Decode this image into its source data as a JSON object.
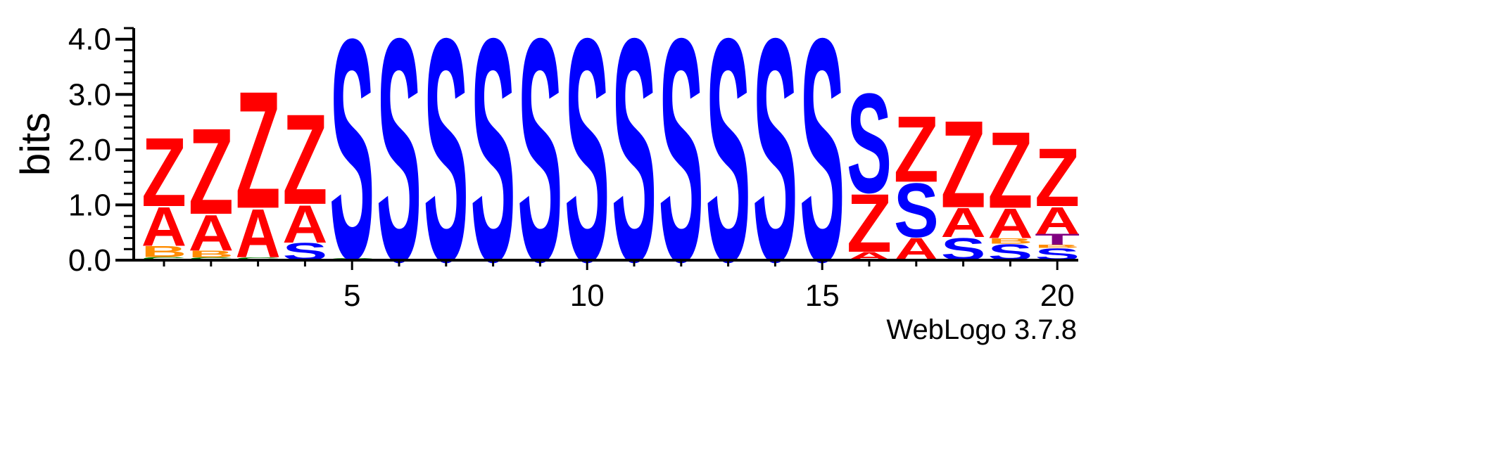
{
  "chart_data": {
    "type": "sequence-logo",
    "ylabel": "bits",
    "ylim": [
      0,
      4.2
    ],
    "y_ticks": [
      "0.0",
      "1.0",
      "2.0",
      "3.0",
      "4.0"
    ],
    "y_tick_values": [
      0,
      1,
      2,
      3,
      4
    ],
    "x_ticks": [
      "5",
      "10",
      "15",
      "20"
    ],
    "x_tick_values": [
      5,
      10,
      15,
      20
    ],
    "positions": [
      1,
      2,
      3,
      4,
      5,
      6,
      7,
      8,
      9,
      10,
      11,
      12,
      13,
      14,
      15,
      16,
      17,
      18,
      19,
      20
    ],
    "stacks": [
      [
        {
          "letter": "C",
          "bits": 0.06
        },
        {
          "letter": "B",
          "bits": 0.2
        },
        {
          "letter": "A",
          "bits": 0.72
        },
        {
          "letter": "Z",
          "bits": 1.28
        }
      ],
      [
        {
          "letter": "C",
          "bits": 0.05
        },
        {
          "letter": "B",
          "bits": 0.13
        },
        {
          "letter": "A",
          "bits": 0.66
        },
        {
          "letter": "Z",
          "bits": 1.6
        }
      ],
      [
        {
          "letter": "C",
          "bits": 0.05
        },
        {
          "letter": "A",
          "bits": 0.9
        },
        {
          "letter": "Z",
          "bits": 2.18
        }
      ],
      [
        {
          "letter": "S",
          "bits": 0.32
        },
        {
          "letter": "A",
          "bits": 0.7
        },
        {
          "letter": "Z",
          "bits": 1.68
        }
      ],
      [
        {
          "letter": "C",
          "bits": 0.04
        },
        {
          "letter": "S",
          "bits": 4.1
        }
      ],
      [
        {
          "letter": "S",
          "bits": 4.15
        }
      ],
      [
        {
          "letter": "S",
          "bits": 4.15
        }
      ],
      [
        {
          "letter": "S",
          "bits": 4.15
        }
      ],
      [
        {
          "letter": "S",
          "bits": 4.15
        }
      ],
      [
        {
          "letter": "S",
          "bits": 4.15
        }
      ],
      [
        {
          "letter": "S",
          "bits": 4.15
        }
      ],
      [
        {
          "letter": "S",
          "bits": 4.15
        }
      ],
      [
        {
          "letter": "S",
          "bits": 4.15
        }
      ],
      [
        {
          "letter": "S",
          "bits": 4.15
        }
      ],
      [
        {
          "letter": "S",
          "bits": 4.15
        }
      ],
      [
        {
          "letter": "A",
          "bits": 0.15
        },
        {
          "letter": "Z",
          "bits": 1.08
        },
        {
          "letter": "S",
          "bits": 1.85
        }
      ],
      [
        {
          "letter": "A",
          "bits": 0.42
        },
        {
          "letter": "S",
          "bits": 1.0
        },
        {
          "letter": "Z",
          "bits": 1.23
        }
      ],
      [
        {
          "letter": "S",
          "bits": 0.42
        },
        {
          "letter": "A",
          "bits": 0.54
        },
        {
          "letter": "Z",
          "bits": 1.62
        }
      ],
      [
        {
          "letter": "S",
          "bits": 0.3
        },
        {
          "letter": "B",
          "bits": 0.1
        },
        {
          "letter": "A",
          "bits": 0.55
        },
        {
          "letter": "Z",
          "bits": 1.42
        }
      ],
      [
        {
          "letter": "S",
          "bits": 0.22
        },
        {
          "letter": "B",
          "bits": 0.06
        },
        {
          "letter": "T",
          "bits": 0.2
        },
        {
          "letter": "A",
          "bits": 0.5
        },
        {
          "letter": "Z",
          "bits": 1.08
        }
      ]
    ],
    "colors": {
      "A": "#ff0000",
      "Z": "#ff0000",
      "S": "#0000ff",
      "T": "#800080",
      "B": "#ff8c00",
      "C": "#008000"
    },
    "footer": "WebLogo 3.7.8"
  }
}
